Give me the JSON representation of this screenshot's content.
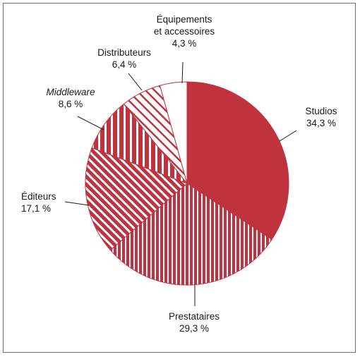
{
  "chart_data": {
    "type": "pie",
    "slices": [
      {
        "label": "Studios",
        "value_label": "34,3 %",
        "value": 34.3,
        "pattern": "solid",
        "color": "#c0323e"
      },
      {
        "label": "Prestataires",
        "value_label": "29,3 %",
        "value": 29.3,
        "pattern": "vertical-stripes",
        "color": "#c0323e"
      },
      {
        "label": "Éditeurs",
        "value_label": "17,1 %",
        "value": 17.1,
        "pattern": "diagonal-stripes-wide",
        "color": "#c0323e"
      },
      {
        "label": "Middleware",
        "value_label": "8,6 %",
        "value": 8.6,
        "pattern": "vertical-stripes-wide",
        "color": "#c0323e",
        "italic": true
      },
      {
        "label": "Distributeurs",
        "value_label": "6,4 %",
        "value": 6.4,
        "pattern": "diagonal-stripes",
        "color": "#c0323e"
      },
      {
        "label": "Équipements\net accessoires",
        "value_label": "4,3 %",
        "value": 4.3,
        "pattern": "none",
        "color": "#ffffff"
      }
    ]
  }
}
